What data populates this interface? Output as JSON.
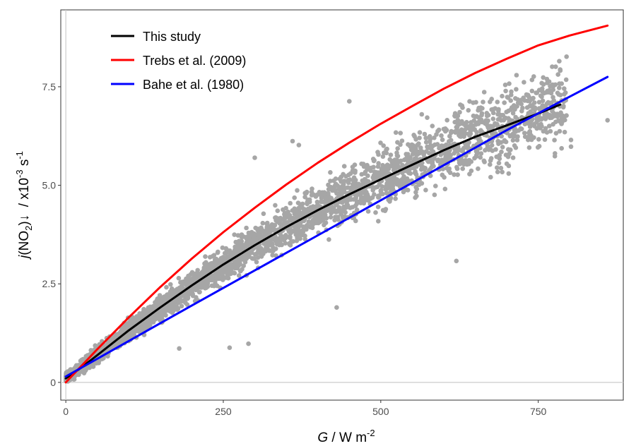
{
  "chart_data": {
    "type": "scatter",
    "xlim": [
      -8,
      885
    ],
    "ylim": [
      -0.45,
      9.45
    ],
    "x_ticks": [
      0,
      250,
      500,
      750
    ],
    "y_ticks": [
      0,
      2.5,
      5.0,
      7.5
    ],
    "x_tick_labels": [
      "0",
      "250",
      "500",
      "750"
    ],
    "y_tick_labels": [
      "0",
      "2.5",
      "5.0",
      "7.5"
    ],
    "xlabel": {
      "italic": "G",
      "text": " / W m",
      "sup": "-2"
    },
    "ylabel": {
      "italic": "j",
      "text1": "(NO",
      "sub": "2",
      "text2": ")↓  / x10",
      "sup1": "-3",
      "text3": " s",
      "sup2": "-1"
    },
    "reference_lines": {
      "x": 0,
      "y": 0
    },
    "grid": false,
    "legend_position": "top-left",
    "scatter_color": "#a6a6a6",
    "series": [
      {
        "name": "This study",
        "color": "#000000",
        "x": [
          0,
          25,
          50,
          100,
          150,
          200,
          250,
          300,
          350,
          400,
          450,
          500,
          550,
          600,
          650,
          700,
          750,
          785
        ],
        "y": [
          0.1,
          0.38,
          0.69,
          1.32,
          1.9,
          2.46,
          2.99,
          3.48,
          3.94,
          4.37,
          4.77,
          5.15,
          5.52,
          5.89,
          6.23,
          6.52,
          6.82,
          7.05
        ]
      },
      {
        "name": "Trebs et al. (2009)",
        "color": "#ff0000",
        "x": [
          0,
          25,
          50,
          100,
          150,
          200,
          250,
          300,
          350,
          400,
          450,
          500,
          550,
          600,
          650,
          700,
          750,
          800,
          860
        ],
        "y": [
          0.0,
          0.42,
          0.84,
          1.65,
          2.42,
          3.14,
          3.81,
          4.43,
          5.02,
          5.57,
          6.08,
          6.56,
          7.01,
          7.45,
          7.85,
          8.21,
          8.55,
          8.8,
          9.05
        ]
      },
      {
        "name": "Bahe et al. (1980)",
        "color": "#0000ff",
        "x": [
          0,
          100,
          200,
          300,
          400,
          500,
          600,
          700,
          800,
          860
        ],
        "y": [
          0.15,
          1.05,
          1.95,
          2.84,
          3.73,
          4.62,
          5.51,
          6.4,
          7.25,
          7.75
        ]
      }
    ],
    "scatter_points": [
      [
        792,
        6.35
      ],
      [
        802,
        6.15
      ],
      [
        802,
        5.98
      ],
      [
        860,
        6.65
      ],
      [
        620,
        3.08
      ],
      [
        450,
        7.13
      ],
      [
        430,
        1.9
      ],
      [
        290,
        0.98
      ],
      [
        260,
        0.88
      ],
      [
        180,
        0.86
      ],
      [
        370,
        6.02
      ],
      [
        360,
        6.12
      ],
      [
        565,
        6.8
      ],
      [
        300,
        5.7
      ]
    ]
  }
}
